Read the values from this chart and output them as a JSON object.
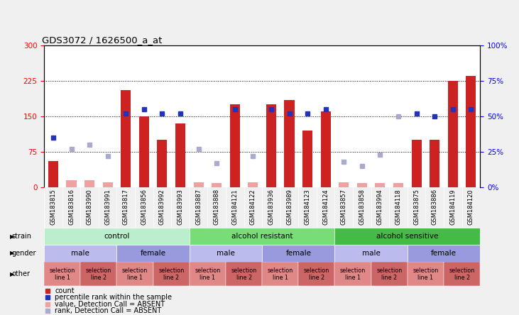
{
  "title": "GDS3072 / 1626500_a_at",
  "samples": [
    "GSM183815",
    "GSM183816",
    "GSM183990",
    "GSM183991",
    "GSM183817",
    "GSM183856",
    "GSM183992",
    "GSM183993",
    "GSM183887",
    "GSM183888",
    "GSM184121",
    "GSM184122",
    "GSM183936",
    "GSM183989",
    "GSM184123",
    "GSM184124",
    "GSM183857",
    "GSM183858",
    "GSM183994",
    "GSM184118",
    "GSM183875",
    "GSM183886",
    "GSM184119",
    "GSM184120"
  ],
  "bar_values": [
    55,
    15,
    15,
    10,
    205,
    150,
    100,
    135,
    10,
    8,
    175,
    10,
    175,
    185,
    120,
    160,
    10,
    8,
    8,
    8,
    100,
    100,
    225,
    235
  ],
  "bar_absent": [
    false,
    true,
    true,
    true,
    false,
    false,
    false,
    false,
    true,
    true,
    false,
    true,
    false,
    false,
    false,
    false,
    true,
    true,
    true,
    true,
    false,
    false,
    false,
    false
  ],
  "percentile_values": [
    35,
    27,
    30,
    22,
    52,
    55,
    52,
    52,
    27,
    17,
    55,
    22,
    55,
    52,
    52,
    55,
    18,
    15,
    23,
    50,
    52,
    50,
    55,
    55
  ],
  "rank_absent": [
    false,
    true,
    true,
    true,
    false,
    false,
    false,
    false,
    true,
    true,
    false,
    true,
    false,
    false,
    false,
    false,
    true,
    true,
    true,
    true,
    false,
    false,
    false,
    false
  ],
  "ylim_left": [
    0,
    300
  ],
  "ylim_right": [
    0,
    100
  ],
  "yticks_left": [
    0,
    75,
    150,
    225,
    300
  ],
  "yticks_right": [
    0,
    25,
    50,
    75,
    100
  ],
  "ytick_labels_right": [
    "0%",
    "25%",
    "50%",
    "75%",
    "100%"
  ],
  "hlines": [
    75,
    150,
    225
  ],
  "bar_color_present": "#cc2222",
  "bar_color_absent": "#f0a0a0",
  "dot_color_present": "#2233bb",
  "dot_color_absent": "#aaaacc",
  "bg_color": "#f0f0f0",
  "strain_groups": [
    {
      "label": "control",
      "start": 0,
      "end": 7,
      "color": "#bbeecc"
    },
    {
      "label": "alcohol resistant",
      "start": 8,
      "end": 15,
      "color": "#77dd77"
    },
    {
      "label": "alcohol sensitive",
      "start": 16,
      "end": 23,
      "color": "#44bb44"
    }
  ],
  "gender_groups": [
    {
      "label": "male",
      "start": 0,
      "end": 3,
      "color": "#bbbbee"
    },
    {
      "label": "female",
      "start": 4,
      "end": 7,
      "color": "#9999dd"
    },
    {
      "label": "male",
      "start": 8,
      "end": 11,
      "color": "#bbbbee"
    },
    {
      "label": "female",
      "start": 12,
      "end": 15,
      "color": "#9999dd"
    },
    {
      "label": "male",
      "start": 16,
      "end": 19,
      "color": "#bbbbee"
    },
    {
      "label": "female",
      "start": 20,
      "end": 23,
      "color": "#9999dd"
    }
  ],
  "other_groups": [
    {
      "label": "selection\nline 1",
      "start": 0,
      "end": 1,
      "color": "#e08888"
    },
    {
      "label": "selection\nline 2",
      "start": 2,
      "end": 3,
      "color": "#cc6666"
    },
    {
      "label": "selection\nline 1",
      "start": 4,
      "end": 5,
      "color": "#e08888"
    },
    {
      "label": "selection\nline 2",
      "start": 6,
      "end": 7,
      "color": "#cc6666"
    },
    {
      "label": "selection\nline 1",
      "start": 8,
      "end": 9,
      "color": "#e08888"
    },
    {
      "label": "selection\nline 2",
      "start": 10,
      "end": 11,
      "color": "#cc6666"
    },
    {
      "label": "selection\nline 1",
      "start": 12,
      "end": 13,
      "color": "#e08888"
    },
    {
      "label": "selection\nline 2",
      "start": 14,
      "end": 15,
      "color": "#cc6666"
    },
    {
      "label": "selection\nline 1",
      "start": 16,
      "end": 17,
      "color": "#e08888"
    },
    {
      "label": "selection\nline 2",
      "start": 18,
      "end": 19,
      "color": "#cc6666"
    },
    {
      "label": "selection\nline 1",
      "start": 20,
      "end": 21,
      "color": "#e08888"
    },
    {
      "label": "selection\nline 2",
      "start": 22,
      "end": 23,
      "color": "#cc6666"
    }
  ],
  "legend_items": [
    {
      "color": "#cc2222",
      "marker": "s",
      "label": "count"
    },
    {
      "color": "#2233bb",
      "marker": "s",
      "label": "percentile rank within the sample"
    },
    {
      "color": "#f0a0a0",
      "marker": "s",
      "label": "value, Detection Call = ABSENT"
    },
    {
      "color": "#aaaacc",
      "marker": "s",
      "label": "rank, Detection Call = ABSENT"
    }
  ]
}
